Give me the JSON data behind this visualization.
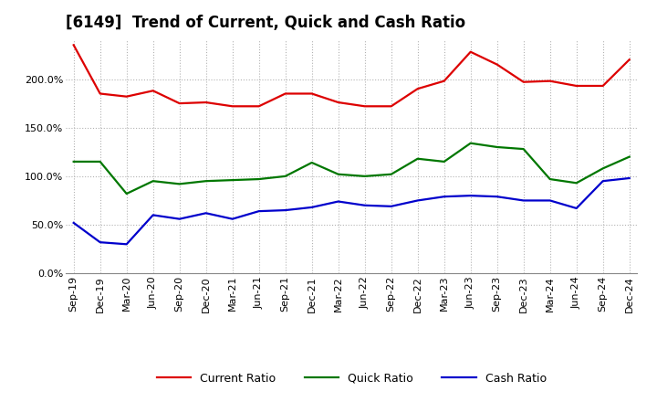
{
  "title": "[6149]  Trend of Current, Quick and Cash Ratio",
  "x_labels": [
    "Sep-19",
    "Dec-19",
    "Mar-20",
    "Jun-20",
    "Sep-20",
    "Dec-20",
    "Mar-21",
    "Jun-21",
    "Sep-21",
    "Dec-21",
    "Mar-22",
    "Jun-22",
    "Sep-22",
    "Dec-22",
    "Mar-23",
    "Jun-23",
    "Sep-23",
    "Dec-23",
    "Mar-24",
    "Jun-24",
    "Sep-24",
    "Dec-24"
  ],
  "current_ratio": [
    235,
    185,
    182,
    188,
    175,
    176,
    172,
    172,
    185,
    185,
    176,
    172,
    172,
    190,
    198,
    228,
    215,
    197,
    198,
    193,
    193,
    220
  ],
  "quick_ratio": [
    115,
    115,
    82,
    95,
    92,
    95,
    96,
    97,
    100,
    114,
    102,
    100,
    102,
    118,
    115,
    134,
    130,
    128,
    97,
    93,
    108,
    120
  ],
  "cash_ratio": [
    52,
    32,
    30,
    60,
    56,
    62,
    56,
    64,
    65,
    68,
    74,
    70,
    69,
    75,
    79,
    80,
    79,
    75,
    75,
    67,
    95,
    98
  ],
  "ylim": [
    0,
    240
  ],
  "yticks": [
    0,
    50,
    100,
    150,
    200
  ],
  "current_color": "#dd0000",
  "quick_color": "#007700",
  "cash_color": "#0000cc",
  "bg_color": "#ffffff",
  "grid_color": "#aaaaaa",
  "title_fontsize": 12,
  "tick_fontsize": 8,
  "legend_fontsize": 9
}
